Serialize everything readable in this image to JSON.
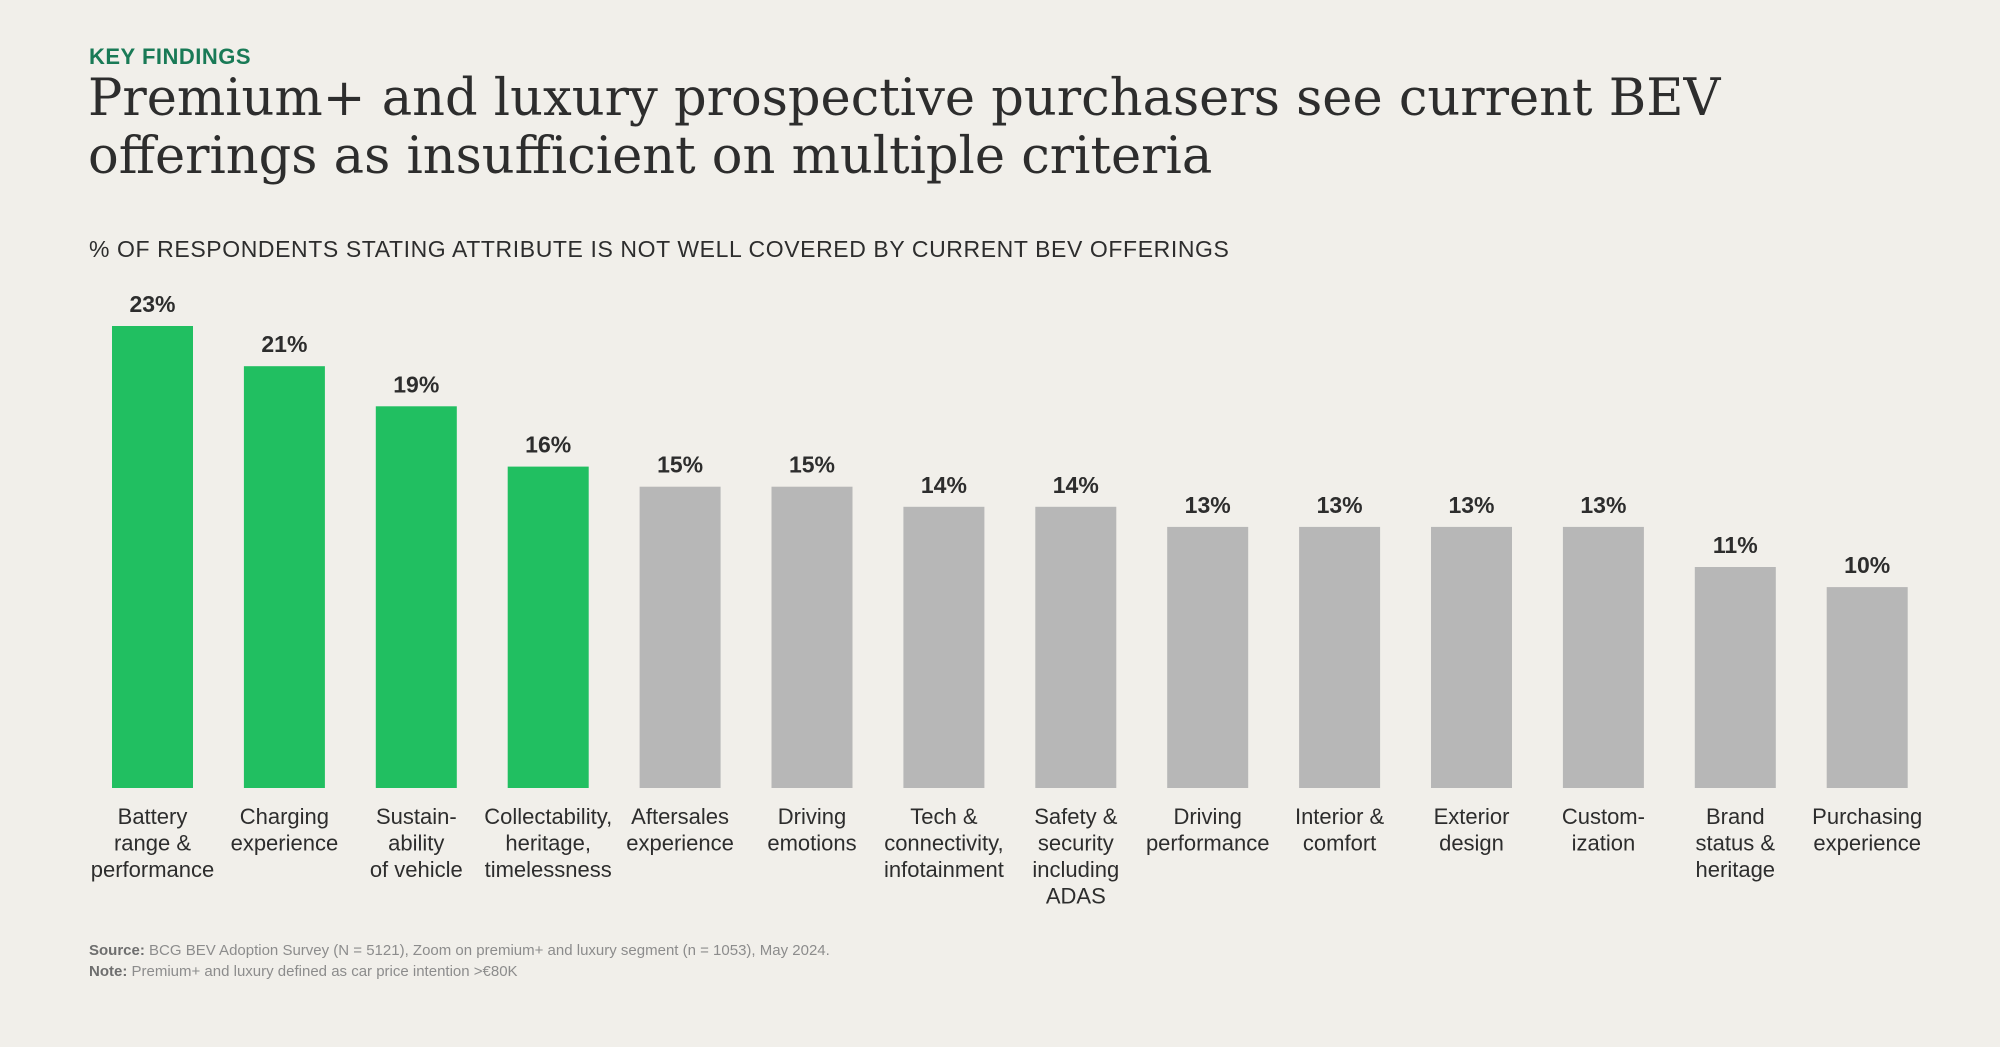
{
  "header": {
    "eyebrow": "KEY FINDINGS",
    "title": "Premium+ and luxury prospective purchasers see current BEV offerings as insufficient on multiple criteria"
  },
  "colors": {
    "background": "#f1efea",
    "highlight": "#21bf61",
    "neutral": "#b7b7b7",
    "eyebrow": "#197a56",
    "text": "#2d2d2d"
  },
  "chart_data": {
    "type": "bar",
    "title": "% OF RESPONDENTS STATING ATTRIBUTE IS NOT WELL COVERED BY CURRENT BEV OFFERINGS",
    "categories": [
      "Battery range & performance",
      "Charging experience",
      "Sustain-ability of vehicle",
      "Collectability, heritage, timelessness",
      "Aftersales experience",
      "Driving emotions",
      "Tech & connectivity, infotainment",
      "Safety & security including ADAS",
      "Driving performance",
      "Interior & comfort",
      "Exterior design",
      "Custom-ization",
      "Brand status & heritage",
      "Purchasing experience"
    ],
    "category_lines": [
      [
        "Battery",
        "range &",
        "performance"
      ],
      [
        "Charging",
        "experience"
      ],
      [
        "Sustain-",
        "ability",
        "of vehicle"
      ],
      [
        "Collectability,",
        "heritage,",
        "timelessness"
      ],
      [
        "Aftersales",
        "experience"
      ],
      [
        "Driving",
        "emotions"
      ],
      [
        "Tech &",
        "connectivity,",
        "infotainment"
      ],
      [
        "Safety &",
        "security",
        "including",
        "ADAS"
      ],
      [
        "Driving",
        "performance"
      ],
      [
        "Interior &",
        "comfort"
      ],
      [
        "Exterior",
        "design"
      ],
      [
        "Custom-",
        "ization"
      ],
      [
        "Brand",
        "status &",
        "heritage"
      ],
      [
        "Purchasing",
        "experience"
      ]
    ],
    "values": [
      23,
      21,
      19,
      16,
      15,
      15,
      14,
      14,
      13,
      13,
      13,
      13,
      11,
      10
    ],
    "data_labels": [
      "23%",
      "21%",
      "19%",
      "16%",
      "15%",
      "15%",
      "14%",
      "14%",
      "13%",
      "13%",
      "13%",
      "13%",
      "11%",
      "10%"
    ],
    "highlighted": [
      true,
      true,
      true,
      true,
      false,
      false,
      false,
      false,
      false,
      false,
      false,
      false,
      false,
      false
    ],
    "unit": "%",
    "ylim": [
      0,
      23
    ],
    "grid": false,
    "legend": "none"
  },
  "footnotes": {
    "source_label": "Source:",
    "source_text": "BCG BEV Adoption Survey (N = 5121), Zoom on premium+ and luxury segment (n = 1053), May 2024.",
    "note_label": "Note:",
    "note_text": "Premium+ and luxury defined as car price intention >€80K"
  }
}
